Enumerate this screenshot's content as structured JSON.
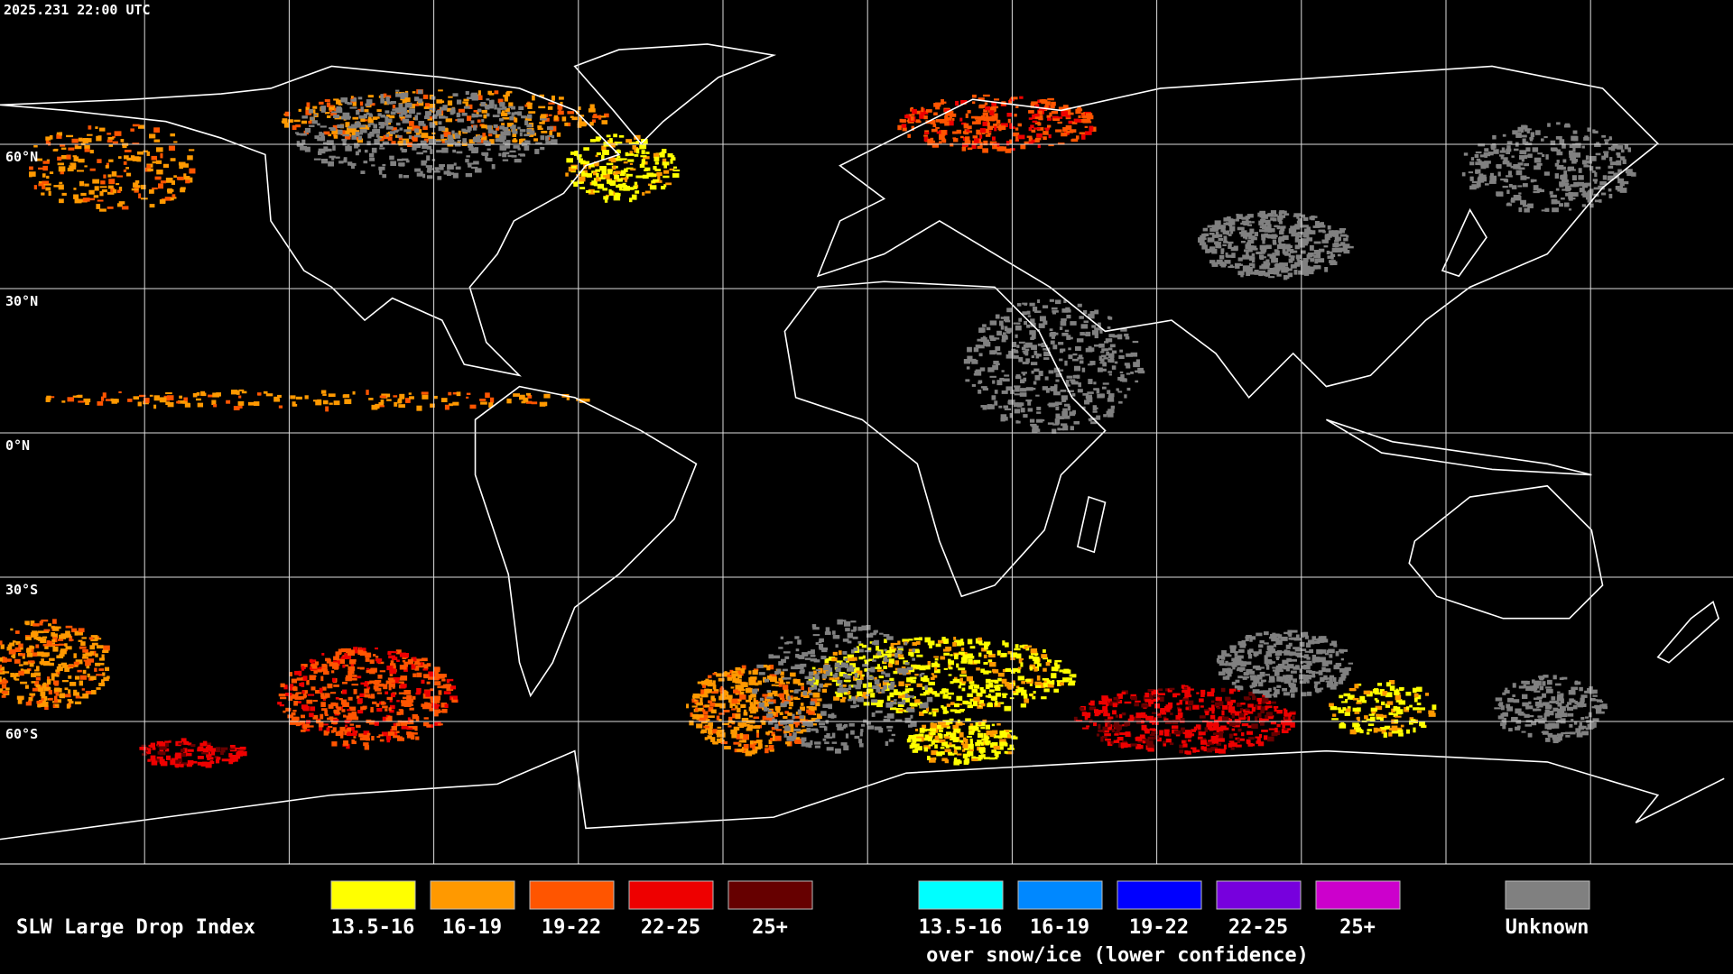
{
  "timestamp": "2025.231 22:00 UTC",
  "latitude_labels": [
    "60°N",
    "30°N",
    "0°N",
    "30°S",
    "60°S"
  ],
  "legend": {
    "title": "SLW Large Drop Index",
    "entries": [
      {
        "label": "13.5-16",
        "color": "#ffff00"
      },
      {
        "label": "16-19",
        "color": "#ff9900"
      },
      {
        "label": "19-22",
        "color": "#ff5500"
      },
      {
        "label": "22-25",
        "color": "#ee0000"
      },
      {
        "label": "25+",
        "color": "#660000"
      }
    ],
    "snow_entries": [
      {
        "label": "13.5-16",
        "color": "#00ffff"
      },
      {
        "label": "16-19",
        "color": "#0088ff"
      },
      {
        "label": "19-22",
        "color": "#0000ff"
      },
      {
        "label": "22-25",
        "color": "#7700dd"
      },
      {
        "label": "25+",
        "color": "#cc00cc"
      }
    ],
    "snow_caption": "over snow/ice (lower confidence)",
    "unknown": {
      "label": "Unknown",
      "color": "#808080"
    }
  }
}
